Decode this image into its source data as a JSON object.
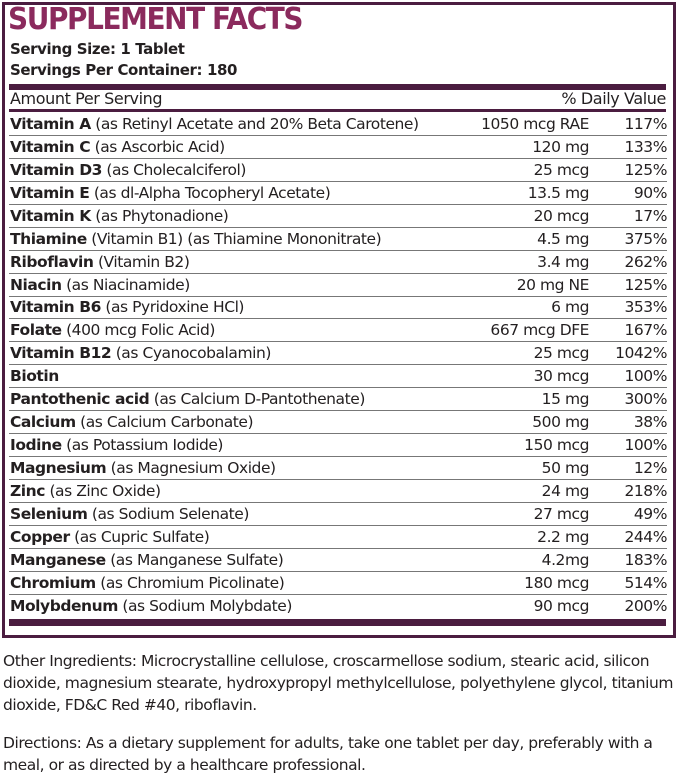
{
  "title": "SUPPLEMENT FACTS",
  "serving_size": "Serving Size: 1 Tablet",
  "servings_per_container": "Servings Per Container: 180",
  "header": {
    "amount": "Amount Per Serving",
    "dv": "% Daily Value"
  },
  "colors": {
    "title": "#8b2a5d",
    "border": "#4b1d40"
  },
  "rows": [
    {
      "name": "Vitamin A",
      "detail": " (as Retinyl Acetate and 20% Beta Carotene)",
      "amount": "1050 mcg RAE",
      "dv": "117%"
    },
    {
      "name": "Vitamin C",
      "detail": " (as Ascorbic Acid)",
      "amount": "120 mg",
      "dv": "133%"
    },
    {
      "name": "Vitamin D3",
      "detail": " (as Cholecalciferol)",
      "amount": "25 mcg",
      "dv": "125%"
    },
    {
      "name": "Vitamin E",
      "detail": " (as dl-Alpha Tocopheryl Acetate)",
      "amount": "13.5 mg",
      "dv": "90%"
    },
    {
      "name": "Vitamin K",
      "detail": " (as Phytonadione)",
      "amount": "20 mcg",
      "dv": "17%"
    },
    {
      "name": "Thiamine",
      "detail": " (Vitamin B1) (as Thiamine Mononitrate)",
      "amount": "4.5 mg",
      "dv": "375%"
    },
    {
      "name": "Riboflavin",
      "detail": " (Vitamin B2)",
      "amount": "3.4 mg",
      "dv": "262%"
    },
    {
      "name": "Niacin",
      "detail": " (as Niacinamide)",
      "amount": "20 mg NE",
      "dv": "125%"
    },
    {
      "name": "Vitamin B6",
      "detail": " (as Pyridoxine HCl)",
      "amount": "6 mg",
      "dv": "353%"
    },
    {
      "name": "Folate",
      "detail": " (400 mcg Folic Acid)",
      "amount": "667 mcg DFE",
      "dv": "167%"
    },
    {
      "name": "Vitamin B12",
      "detail": " (as Cyanocobalamin)",
      "amount": "25 mcg",
      "dv": "1042%"
    },
    {
      "name": "Biotin",
      "detail": "",
      "amount": "30 mcg",
      "dv": "100%"
    },
    {
      "name": "Pantothenic acid",
      "detail": " (as Calcium D-Pantothenate)",
      "amount": "15 mg",
      "dv": "300%"
    },
    {
      "name": "Calcium",
      "detail": " (as Calcium Carbonate)",
      "amount": "500 mg",
      "dv": "38%"
    },
    {
      "name": "Iodine",
      "detail": " (as Potassium Iodide)",
      "amount": "150 mcg",
      "dv": "100%"
    },
    {
      "name": "Magnesium",
      "detail": " (as Magnesium Oxide)",
      "amount": "50 mg",
      "dv": "12%"
    },
    {
      "name": "Zinc",
      "detail": " (as Zinc Oxide)",
      "amount": "24 mg",
      "dv": "218%"
    },
    {
      "name": "Selenium",
      "detail": " (as Sodium Selenate)",
      "amount": "27 mcg",
      "dv": "49%"
    },
    {
      "name": "Copper",
      "detail": " (as Cupric Sulfate)",
      "amount": "2.2 mg",
      "dv": "244%"
    },
    {
      "name": "Manganese",
      "detail": " (as Manganese Sulfate)",
      "amount": "4.2mg",
      "dv": "183%"
    },
    {
      "name": "Chromium",
      "detail": " (as Chromium Picolinate)",
      "amount": "180 mcg",
      "dv": "514%"
    },
    {
      "name": "Molybdenum",
      "detail": " (as Sodium Molybdate)",
      "amount": "90 mcg",
      "dv": "200%"
    }
  ],
  "other_ingredients": {
    "label": "Other Ingredients:",
    "text": " Microcrystalline cellulose, croscarmellose sodium, stearic acid, silicon dioxide, magnesium stearate, hydroxypropyl methylcellulose, polyethylene glycol, titanium dioxide, FD&C Red #40, riboflavin."
  },
  "directions": {
    "label": "Directions:",
    "text": " As a dietary supplement for adults, take one tablet per day, preferably with a meal, or as directed by a healthcare professional."
  }
}
